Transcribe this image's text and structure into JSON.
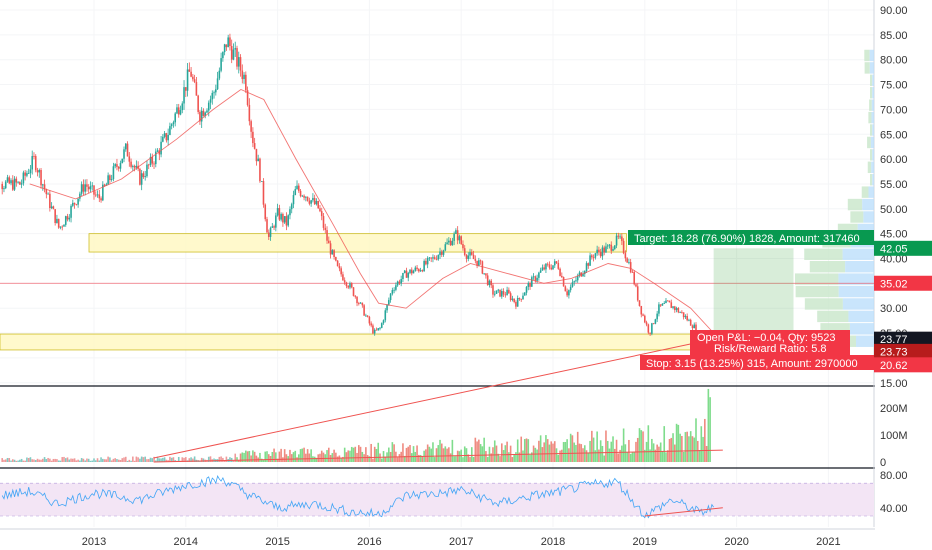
{
  "chart_data": {
    "type": "candlestick",
    "colors": {
      "up": "#26a69a",
      "down": "#ef5350",
      "ma": "#ef5350",
      "target": "#4caf50",
      "stop": "#f23645",
      "zone_fill": "#fff9c4",
      "zone_stroke": "#c8b400",
      "rsi_line": "#42a5f5",
      "rsi_band": "#f3e5f5",
      "trend": "#ef5350",
      "entry_tag": "#131722",
      "profile_up": "#c8e6c9",
      "profile_down": "#bbdefb"
    },
    "price_axis": {
      "ticks": [
        "90.00",
        "85.00",
        "80.00",
        "75.00",
        "70.00",
        "65.00",
        "60.00",
        "55.00",
        "50.00",
        "45.00",
        "40.00",
        "35.00",
        "30.00",
        "25.00",
        "20.00",
        "15.00"
      ],
      "tick_values": [
        90,
        85,
        80,
        75,
        70,
        65,
        60,
        55,
        50,
        45,
        40,
        35,
        30,
        25,
        20,
        15
      ],
      "ylim": [
        12,
        92
      ]
    },
    "volume_axis": {
      "ticks": [
        "200M",
        "100M",
        "0"
      ],
      "tick_values": [
        200,
        100,
        0
      ]
    },
    "rsi_axis": {
      "ticks": [
        "80.00",
        "40.00"
      ],
      "tick_values": [
        80,
        40
      ],
      "band": [
        30,
        70
      ]
    },
    "x_axis": {
      "labels": [
        "2013",
        "2014",
        "2015",
        "2016",
        "2017",
        "2018",
        "2019",
        "2020",
        "2021"
      ],
      "years": [
        2013,
        2014,
        2015,
        2016,
        2017,
        2018,
        2019,
        2020,
        2021
      ]
    },
    "price_path": [
      [
        2012.2,
        55
      ],
      [
        2012.35,
        60
      ],
      [
        2012.5,
        52
      ],
      [
        2012.62,
        46
      ],
      [
        2012.75,
        50
      ],
      [
        2012.9,
        55
      ],
      [
        2013.05,
        52
      ],
      [
        2013.2,
        57
      ],
      [
        2013.35,
        62
      ],
      [
        2013.5,
        56
      ],
      [
        2013.65,
        60
      ],
      [
        2013.8,
        65
      ],
      [
        2013.95,
        72
      ],
      [
        2014.05,
        78
      ],
      [
        2014.15,
        69
      ],
      [
        2014.3,
        73
      ],
      [
        2014.45,
        84
      ],
      [
        2014.55,
        80
      ],
      [
        2014.65,
        76
      ],
      [
        2014.72,
        65
      ],
      [
        2014.8,
        58
      ],
      [
        2014.9,
        44
      ],
      [
        2015.0,
        49
      ],
      [
        2015.1,
        47
      ],
      [
        2015.2,
        54
      ],
      [
        2015.3,
        53
      ],
      [
        2015.45,
        50
      ],
      [
        2015.55,
        43
      ],
      [
        2015.65,
        38
      ],
      [
        2015.8,
        34
      ],
      [
        2015.92,
        30
      ],
      [
        2016.05,
        25
      ],
      [
        2016.12,
        26
      ],
      [
        2016.25,
        34
      ],
      [
        2016.4,
        37
      ],
      [
        2016.55,
        38
      ],
      [
        2016.7,
        40
      ],
      [
        2016.85,
        43
      ],
      [
        2016.95,
        45
      ],
      [
        2017.05,
        41
      ],
      [
        2017.2,
        39
      ],
      [
        2017.35,
        33
      ],
      [
        2017.5,
        33
      ],
      [
        2017.6,
        31
      ],
      [
        2017.75,
        35
      ],
      [
        2017.9,
        38
      ],
      [
        2018.05,
        39
      ],
      [
        2018.15,
        33
      ],
      [
        2018.3,
        37
      ],
      [
        2018.45,
        41
      ],
      [
        2018.6,
        42
      ],
      [
        2018.72,
        44
      ],
      [
        2018.85,
        38
      ],
      [
        2018.95,
        30
      ],
      [
        2019.05,
        25
      ],
      [
        2019.15,
        30
      ],
      [
        2019.25,
        31
      ],
      [
        2019.4,
        29
      ],
      [
        2019.55,
        26
      ],
      [
        2019.62,
        23
      ],
      [
        2019.7,
        21
      ],
      [
        2019.78,
        23.77
      ]
    ],
    "ma_path": [
      [
        2012.3,
        55
      ],
      [
        2012.8,
        52
      ],
      [
        2013.3,
        56
      ],
      [
        2013.9,
        64
      ],
      [
        2014.3,
        70
      ],
      [
        2014.6,
        74
      ],
      [
        2014.85,
        72
      ],
      [
        2015.2,
        60
      ],
      [
        2015.6,
        47
      ],
      [
        2015.9,
        37
      ],
      [
        2016.1,
        31
      ],
      [
        2016.4,
        30
      ],
      [
        2016.8,
        36
      ],
      [
        2017.1,
        39
      ],
      [
        2017.5,
        37
      ],
      [
        2017.9,
        35
      ],
      [
        2018.2,
        36
      ],
      [
        2018.6,
        39
      ],
      [
        2018.85,
        38
      ],
      [
        2019.1,
        35
      ],
      [
        2019.5,
        30
      ],
      [
        2019.8,
        24
      ]
    ],
    "horizontal_line": {
      "price": 35.02,
      "label": "35.02"
    },
    "zones": [
      {
        "x_start": 2012.0,
        "x_end": 2018.8,
        "price_top": 45,
        "price_bottom": 41.3
      },
      {
        "x_start": 2012.0,
        "x_end": 2019.75,
        "price_top": 24.8,
        "price_bottom": 21.6
      }
    ],
    "position": {
      "x_start": 2019.75,
      "x_end": 2020.62,
      "entry": 23.77,
      "target_price": 42.05,
      "stop_price": 20.62,
      "target_text": "Target: 18.28 (76.90%) 1828, Amount: 317460",
      "pnl_text": "Open P&L: −0.04, Qty: 9523",
      "rr_text": "Risk/Reward Ratio: 5.8",
      "stop_text": "Stop: 3.15 (13.25%) 315, Amount: 2970000"
    },
    "price_tags": [
      {
        "text": "42.05",
        "price": 42.05,
        "role": "target"
      },
      {
        "text": "35.02",
        "price": 35.02,
        "role": "hline"
      },
      {
        "text": "23.77",
        "price": 23.77,
        "role": "last"
      },
      {
        "text": "23.73",
        "price": 23.73,
        "role": "stop-dark"
      },
      {
        "text": "20.62",
        "price": 20.62,
        "role": "stop"
      }
    ],
    "volume_trend": [
      [
        2013.65,
        15
      ],
      [
        2019.85,
        55
      ]
    ],
    "volume_path": [
      [
        2012.0,
        12
      ],
      [
        2014.5,
        16
      ],
      [
        2014.6,
        30
      ],
      [
        2015.0,
        35
      ],
      [
        2015.5,
        40
      ],
      [
        2016.0,
        48
      ],
      [
        2016.5,
        55
      ],
      [
        2017.0,
        60
      ],
      [
        2017.5,
        68
      ],
      [
        2018.0,
        75
      ],
      [
        2018.5,
        82
      ],
      [
        2019.0,
        95
      ],
      [
        2019.5,
        110
      ],
      [
        2019.65,
        140
      ],
      [
        2019.72,
        250
      ]
    ],
    "rsi_trend": [
      [
        2019.0,
        30
      ],
      [
        2019.85,
        40
      ]
    ],
    "rsi_path": [
      [
        2012.0,
        55
      ],
      [
        2012.3,
        60
      ],
      [
        2012.6,
        45
      ],
      [
        2013.0,
        58
      ],
      [
        2013.5,
        50
      ],
      [
        2014.0,
        68
      ],
      [
        2014.4,
        75
      ],
      [
        2014.7,
        55
      ],
      [
        2015.0,
        40
      ],
      [
        2015.4,
        45
      ],
      [
        2015.8,
        35
      ],
      [
        2016.1,
        32
      ],
      [
        2016.4,
        55
      ],
      [
        2016.8,
        58
      ],
      [
        2017.0,
        62
      ],
      [
        2017.4,
        45
      ],
      [
        2017.8,
        55
      ],
      [
        2018.0,
        58
      ],
      [
        2018.4,
        68
      ],
      [
        2018.7,
        72
      ],
      [
        2019.0,
        30
      ],
      [
        2019.3,
        50
      ],
      [
        2019.6,
        34
      ],
      [
        2019.75,
        40
      ]
    ]
  }
}
